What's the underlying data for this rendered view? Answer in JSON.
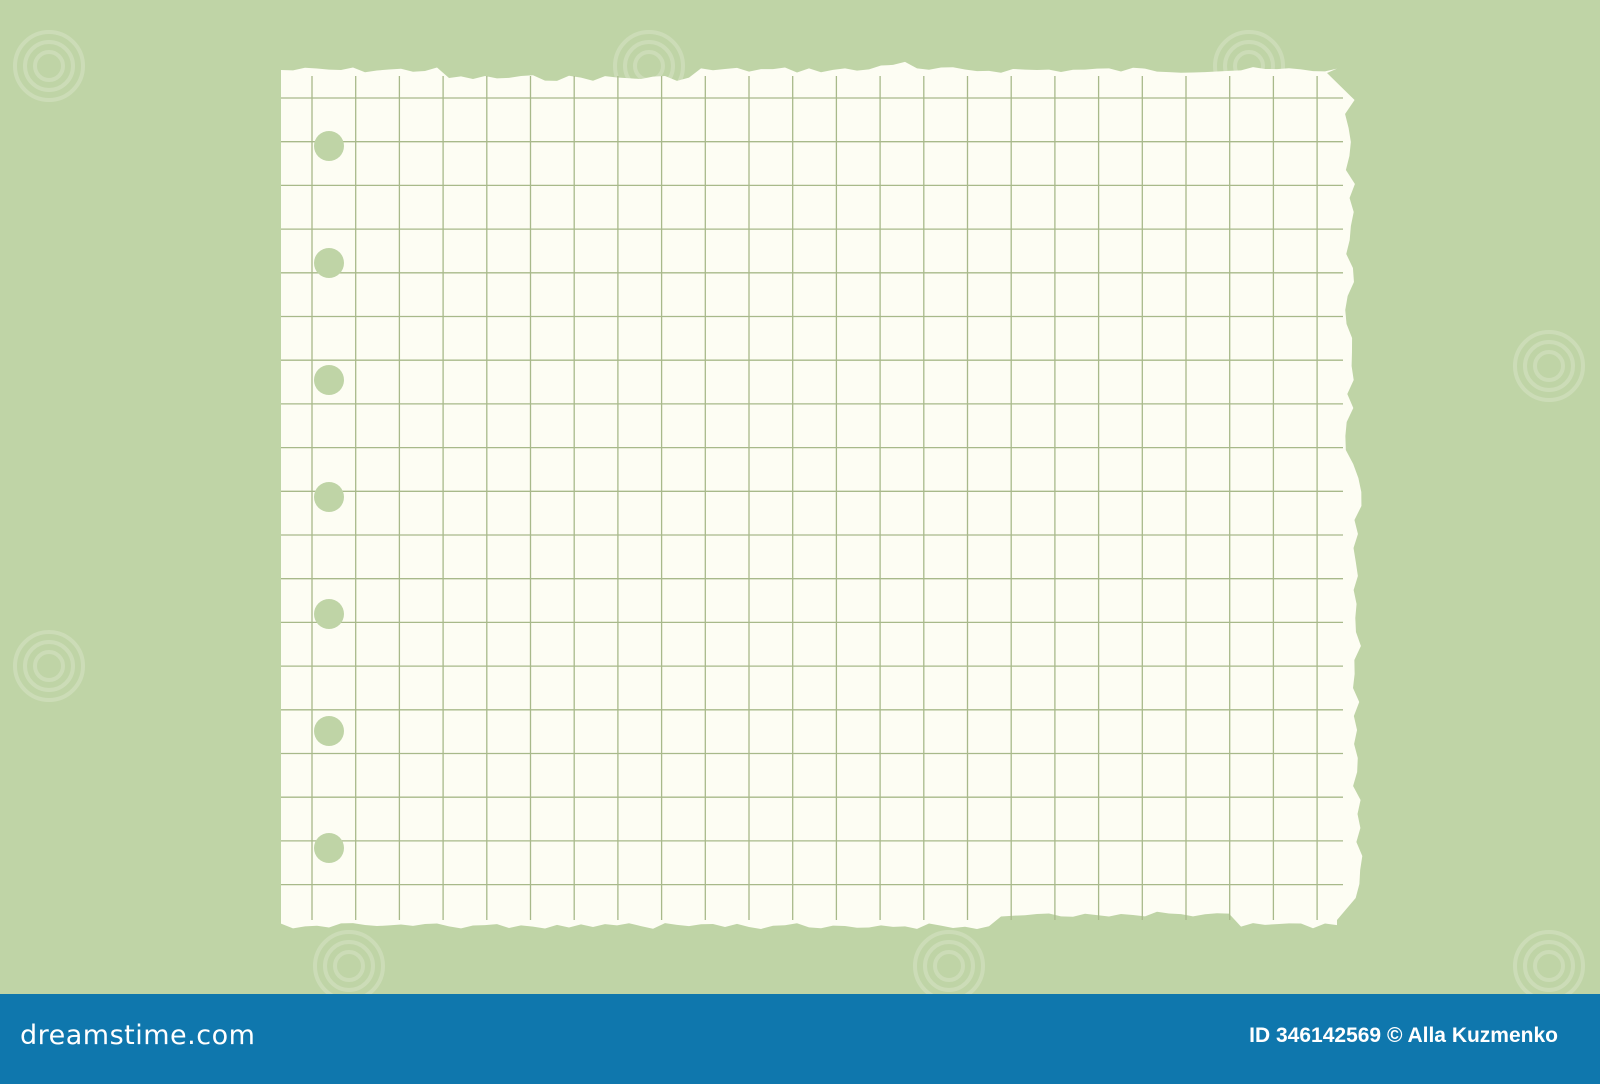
{
  "colors": {
    "background": "#bfd4a6",
    "paper": "#fdfdf3",
    "grid_line": "#a8b98a",
    "footer": "#0f77ad"
  },
  "paper": {
    "style": "torn graph paper sheet with punched holes",
    "hole_count": 7
  },
  "footer": {
    "brand": "dreamstime.com",
    "credit": "ID 346142569 © Alla Kuzmenko"
  }
}
